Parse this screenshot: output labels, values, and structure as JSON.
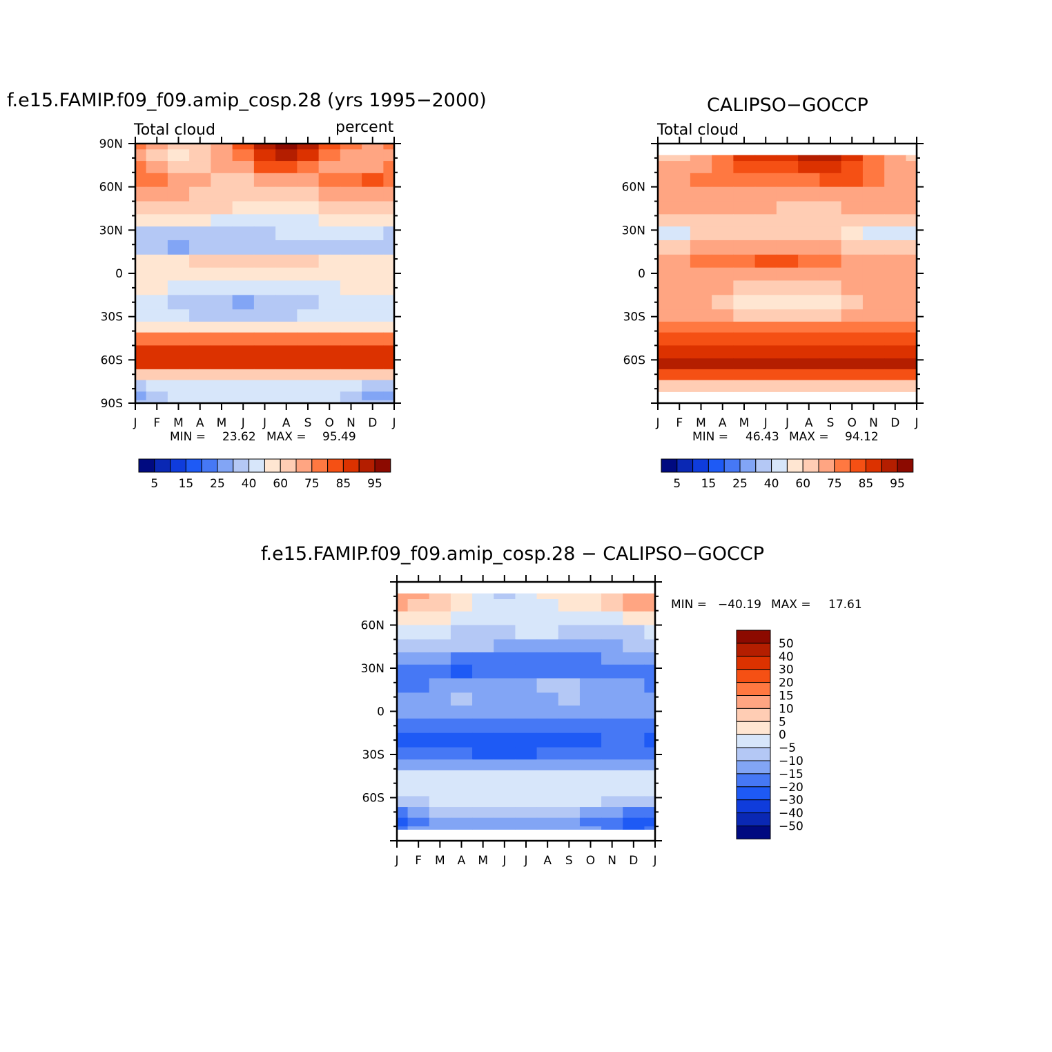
{
  "palette": {
    "abs": [
      "#000a80",
      "#0a28b4",
      "#0f3cdc",
      "#1e5af5",
      "#4678f5",
      "#82a5f5",
      "#b4c8f5",
      "#d7e6fa",
      "#ffe6d2",
      "#ffcdb4",
      "#ffa582",
      "#ff7841",
      "#f55014",
      "#dc3200",
      "#b41e00",
      "#8c0a00"
    ],
    "diff": [
      "#000a80",
      "#0a28b4",
      "#0f3cdc",
      "#1e5af5",
      "#4678f5",
      "#82a5f5",
      "#b4c8f5",
      "#d7e6fa",
      "#ffe6d2",
      "#ffcdb4",
      "#ffa582",
      "#ff7841",
      "#f55014",
      "#dc3200",
      "#b41e00",
      "#8c0a00"
    ]
  },
  "months": [
    "J",
    "F",
    "M",
    "A",
    "M",
    "J",
    "J",
    "A",
    "S",
    "O",
    "N",
    "D",
    "J"
  ],
  "chart_data": [
    {
      "type": "heatmap",
      "title": "f.e15.FAMIP.f09_f09.amip_cosp.28 (yrs 1995−2000)",
      "left_label": "Total cloud",
      "right_label": "percent",
      "x": [
        "J",
        "F",
        "M",
        "A",
        "M",
        "J",
        "J",
        "A",
        "S",
        "O",
        "N",
        "D",
        "J"
      ],
      "ylabel_ticks": [
        "90N",
        "60N",
        "30N",
        "0",
        "30S",
        "60S",
        "90S"
      ],
      "ylim": [
        -90,
        90
      ],
      "lat": [
        90,
        82,
        74,
        65,
        55,
        45,
        37,
        28,
        18,
        8,
        0,
        -10,
        -20,
        -30,
        -37,
        -45,
        -55,
        -63,
        -70,
        -78,
        -86,
        -90
      ],
      "values": [
        [
          11,
          10,
          9,
          9,
          10,
          12,
          14,
          15,
          14,
          12,
          11,
          10,
          11
        ],
        [
          10,
          9,
          8,
          9,
          10,
          11,
          13,
          14,
          13,
          11,
          10,
          10,
          10
        ],
        [
          11,
          10,
          9,
          9,
          10,
          10,
          12,
          12,
          11,
          10,
          10,
          10,
          11
        ],
        [
          11,
          11,
          10,
          10,
          9,
          9,
          10,
          10,
          10,
          11,
          11,
          12,
          11
        ],
        [
          10,
          10,
          10,
          9,
          9,
          9,
          9,
          9,
          9,
          10,
          10,
          10,
          10
        ],
        [
          9,
          9,
          9,
          9,
          9,
          8,
          8,
          8,
          8,
          9,
          9,
          9,
          9
        ],
        [
          8,
          8,
          8,
          8,
          7,
          7,
          7,
          7,
          7,
          8,
          8,
          8,
          8
        ],
        [
          6,
          6,
          6,
          6,
          6,
          6,
          6,
          7,
          7,
          7,
          7,
          7,
          6
        ],
        [
          6,
          6,
          5,
          6,
          6,
          6,
          6,
          6,
          6,
          6,
          6,
          6,
          6
        ],
        [
          8,
          8,
          8,
          9,
          9,
          9,
          9,
          9,
          9,
          8,
          8,
          8,
          8
        ],
        [
          8,
          8,
          8,
          8,
          8,
          8,
          8,
          8,
          8,
          8,
          8,
          8,
          8
        ],
        [
          8,
          8,
          7,
          7,
          7,
          7,
          7,
          7,
          7,
          7,
          8,
          8,
          8
        ],
        [
          7,
          7,
          6,
          6,
          6,
          5,
          6,
          6,
          6,
          7,
          7,
          7,
          7
        ],
        [
          7,
          7,
          7,
          6,
          6,
          6,
          6,
          6,
          7,
          7,
          7,
          7,
          7
        ],
        [
          8,
          8,
          8,
          8,
          8,
          8,
          8,
          8,
          8,
          8,
          8,
          8,
          8
        ],
        [
          11,
          11,
          11,
          11,
          11,
          11,
          11,
          11,
          11,
          11,
          11,
          11,
          11
        ],
        [
          13,
          13,
          13,
          13,
          13,
          13,
          13,
          13,
          13,
          13,
          13,
          13,
          13
        ],
        [
          13,
          13,
          13,
          13,
          13,
          13,
          13,
          13,
          13,
          13,
          13,
          13,
          13
        ],
        [
          9,
          9,
          9,
          9,
          9,
          9,
          9,
          9,
          9,
          9,
          9,
          9,
          9
        ],
        [
          6,
          7,
          7,
          7,
          7,
          7,
          7,
          7,
          7,
          7,
          7,
          6,
          6
        ],
        [
          5,
          6,
          7,
          7,
          7,
          7,
          7,
          7,
          7,
          7,
          6,
          5,
          5
        ],
        [
          6,
          6,
          7,
          7,
          7,
          7,
          7,
          7,
          7,
          7,
          6,
          6,
          6
        ]
      ],
      "min_label": "MIN =",
      "min_value": "23.62",
      "max_label": "MAX =",
      "max_value": "95.49",
      "colorbar_labels": [
        "5",
        "15",
        "25",
        "40",
        "60",
        "75",
        "85",
        "95"
      ],
      "value_range": [
        23.62,
        95.49
      ]
    },
    {
      "type": "heatmap",
      "title": "CALIPSO−GOCCP",
      "left_label": "Total cloud",
      "x": [
        "J",
        "F",
        "M",
        "A",
        "M",
        "J",
        "J",
        "A",
        "S",
        "O",
        "N",
        "D",
        "J"
      ],
      "ylabel_ticks": [
        "60N",
        "30N",
        "0",
        "30S",
        "60S"
      ],
      "ylim": [
        -90,
        90
      ],
      "lat": [
        82,
        74,
        65,
        55,
        45,
        37,
        28,
        18,
        8,
        0,
        -10,
        -20,
        -30,
        -37,
        -45,
        -55,
        -63,
        -70,
        -78,
        -82
      ],
      "values": [
        [
          9,
          9,
          10,
          11,
          13,
          13,
          13,
          14,
          14,
          13,
          11,
          10,
          9
        ],
        [
          10,
          10,
          10,
          11,
          12,
          12,
          12,
          13,
          13,
          12,
          11,
          10,
          10
        ],
        [
          10,
          10,
          11,
          11,
          11,
          11,
          11,
          11,
          12,
          12,
          11,
          10,
          10
        ],
        [
          10,
          10,
          10,
          10,
          10,
          10,
          10,
          10,
          10,
          10,
          10,
          10,
          10
        ],
        [
          10,
          10,
          10,
          10,
          10,
          10,
          9,
          9,
          9,
          10,
          10,
          10,
          10
        ],
        [
          9,
          9,
          9,
          9,
          9,
          9,
          9,
          9,
          9,
          9,
          9,
          9,
          9
        ],
        [
          7,
          7,
          9,
          9,
          9,
          9,
          9,
          9,
          9,
          8,
          7,
          7,
          7
        ],
        [
          9,
          9,
          10,
          10,
          10,
          10,
          10,
          10,
          10,
          9,
          9,
          9,
          9
        ],
        [
          10,
          10,
          11,
          11,
          11,
          12,
          12,
          11,
          11,
          10,
          10,
          10,
          10
        ],
        [
          10,
          10,
          10,
          10,
          10,
          10,
          10,
          10,
          10,
          10,
          10,
          10,
          10
        ],
        [
          10,
          10,
          10,
          10,
          9,
          9,
          9,
          9,
          9,
          10,
          10,
          10,
          10
        ],
        [
          10,
          10,
          10,
          9,
          8,
          8,
          8,
          8,
          8,
          9,
          10,
          10,
          10
        ],
        [
          10,
          10,
          10,
          10,
          9,
          9,
          9,
          9,
          9,
          10,
          10,
          10,
          10
        ],
        [
          11,
          11,
          11,
          11,
          11,
          11,
          11,
          11,
          11,
          11,
          11,
          11,
          11
        ],
        [
          12,
          12,
          12,
          12,
          12,
          12,
          12,
          12,
          12,
          12,
          12,
          12,
          12
        ],
        [
          13,
          13,
          13,
          13,
          13,
          13,
          13,
          13,
          13,
          13,
          13,
          13,
          13
        ],
        [
          14,
          14,
          14,
          14,
          14,
          14,
          14,
          14,
          14,
          14,
          14,
          14,
          14
        ],
        [
          12,
          12,
          12,
          12,
          12,
          12,
          12,
          12,
          12,
          12,
          12,
          12,
          12
        ],
        [
          9,
          9,
          9,
          9,
          9,
          9,
          9,
          9,
          9,
          9,
          9,
          9,
          9
        ],
        [
          9,
          9,
          9,
          9,
          9,
          9,
          9,
          9,
          9,
          9,
          9,
          9,
          9
        ]
      ],
      "min_label": "MIN =",
      "min_value": "46.43",
      "max_label": "MAX =",
      "max_value": "94.12",
      "colorbar_labels": [
        "5",
        "15",
        "25",
        "40",
        "60",
        "75",
        "85",
        "95"
      ],
      "value_range": [
        46.43,
        94.12
      ]
    },
    {
      "type": "heatmap",
      "title": "f.e15.FAMIP.f09_f09.amip_cosp.28 − CALIPSO−GOCCP",
      "x": [
        "J",
        "F",
        "M",
        "A",
        "M",
        "J",
        "J",
        "A",
        "S",
        "O",
        "N",
        "D",
        "J"
      ],
      "ylabel_ticks": [
        "60N",
        "30N",
        "0",
        "30S",
        "60S"
      ],
      "ylim": [
        -90,
        90
      ],
      "lat": [
        82,
        74,
        65,
        55,
        45,
        37,
        28,
        18,
        8,
        0,
        -10,
        -20,
        -30,
        -37,
        -45,
        -55,
        -63,
        -70,
        -78,
        -82
      ],
      "values": [
        [
          10,
          10,
          9,
          8,
          7,
          6,
          7,
          8,
          8,
          8,
          9,
          10,
          10
        ],
        [
          10,
          9,
          9,
          8,
          7,
          7,
          7,
          7,
          8,
          8,
          9,
          10,
          10
        ],
        [
          8,
          8,
          8,
          7,
          7,
          7,
          7,
          7,
          7,
          7,
          7,
          8,
          8
        ],
        [
          7,
          7,
          7,
          6,
          6,
          6,
          7,
          7,
          6,
          6,
          6,
          6,
          7
        ],
        [
          6,
          6,
          6,
          6,
          6,
          5,
          5,
          5,
          5,
          5,
          5,
          6,
          6
        ],
        [
          5,
          5,
          5,
          4,
          4,
          4,
          4,
          4,
          4,
          4,
          5,
          5,
          5
        ],
        [
          4,
          4,
          4,
          3,
          4,
          4,
          4,
          4,
          4,
          4,
          4,
          4,
          4
        ],
        [
          4,
          4,
          5,
          5,
          5,
          5,
          5,
          6,
          6,
          5,
          5,
          5,
          4
        ],
        [
          5,
          5,
          5,
          6,
          5,
          5,
          5,
          5,
          6,
          5,
          5,
          5,
          5
        ],
        [
          5,
          5,
          5,
          5,
          5,
          5,
          5,
          5,
          5,
          5,
          5,
          5,
          5
        ],
        [
          4,
          4,
          4,
          4,
          4,
          4,
          4,
          4,
          4,
          4,
          4,
          4,
          4
        ],
        [
          3,
          3,
          3,
          3,
          3,
          3,
          3,
          3,
          3,
          3,
          4,
          4,
          3
        ],
        [
          4,
          4,
          4,
          4,
          3,
          3,
          3,
          4,
          4,
          4,
          4,
          4,
          4
        ],
        [
          5,
          5,
          5,
          5,
          5,
          5,
          5,
          5,
          5,
          5,
          5,
          5,
          5
        ],
        [
          7,
          7,
          7,
          7,
          7,
          7,
          7,
          7,
          7,
          7,
          7,
          7,
          7
        ],
        [
          7,
          7,
          7,
          7,
          7,
          7,
          7,
          7,
          7,
          7,
          7,
          7,
          7
        ],
        [
          6,
          6,
          7,
          7,
          7,
          7,
          7,
          7,
          7,
          7,
          6,
          6,
          6
        ],
        [
          4,
          5,
          6,
          6,
          6,
          6,
          6,
          6,
          6,
          5,
          5,
          4,
          4
        ],
        [
          3,
          4,
          5,
          5,
          5,
          5,
          5,
          5,
          5,
          4,
          4,
          3,
          3
        ],
        [
          4,
          5,
          5,
          5,
          5,
          5,
          5,
          5,
          5,
          5,
          4,
          3,
          4
        ]
      ],
      "min_label": "MIN =",
      "min_value": "−40.19",
      "max_label": "MAX =",
      "max_value": "17.61",
      "colorbar_labels": [
        "50",
        "40",
        "30",
        "20",
        "15",
        "10",
        "5",
        "0",
        "−5",
        "−10",
        "−15",
        "−20",
        "−30",
        "−40",
        "−50"
      ],
      "value_range": [
        -40.19,
        17.61
      ]
    }
  ]
}
